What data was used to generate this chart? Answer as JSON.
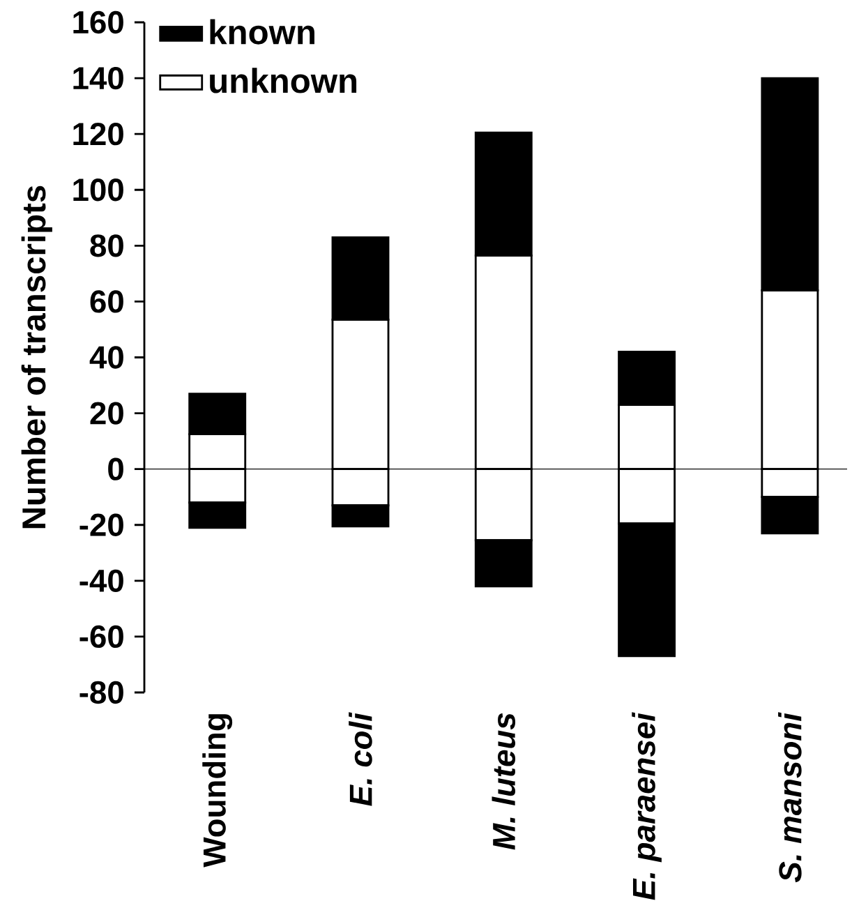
{
  "chart_data": {
    "type": "bar",
    "stacked": true,
    "ylabel": "Number of transcripts",
    "categories": [
      "Wounding",
      "*E. coli*",
      "*M. luteus*",
      "*E. paraensei*",
      "*S. mansoni*"
    ],
    "series": [
      {
        "name": "unknown",
        "color": "#ffffff",
        "values": [
          12.5,
          53.5,
          76.5,
          23,
          64
        ]
      },
      {
        "name": "known",
        "color": "#000000",
        "values": [
          14.5,
          29.5,
          44,
          19,
          76
        ]
      },
      {
        "color": "#ffffff",
        "values": [
          -12,
          -13,
          -25.5,
          -19.5,
          -10
        ]
      },
      {
        "color": "#000000",
        "values": [
          -9,
          -7.5,
          -16.5,
          -47.5,
          -13
        ]
      }
    ],
    "ylim": [
      -80,
      160
    ],
    "yticks": [
      -80,
      -60,
      -40,
      -20,
      0,
      20,
      40,
      60,
      80,
      100,
      120,
      140,
      160
    ],
    "ref_lines": [
      {
        "axis": "y",
        "value": 0,
        "color": "#000000"
      }
    ],
    "grid": false,
    "legend": "top left"
  }
}
